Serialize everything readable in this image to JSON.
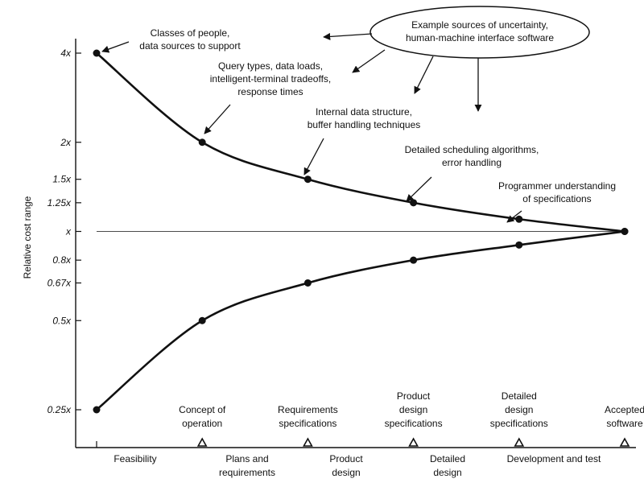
{
  "chart_data": {
    "type": "line",
    "ylabel": "Relative cost range",
    "y_scale": "log",
    "ylim": [
      0.25,
      4
    ],
    "y_ticks": [
      {
        "value": 4,
        "label": "4x"
      },
      {
        "value": 2,
        "label": "2x"
      },
      {
        "value": 1.5,
        "label": "1.5x"
      },
      {
        "value": 1.25,
        "label": "1.25x"
      },
      {
        "value": 1,
        "label": "x"
      },
      {
        "value": 0.8,
        "label": "0.8x"
      },
      {
        "value": 0.67,
        "label": "0.67x"
      },
      {
        "value": 0.5,
        "label": "0.5x"
      },
      {
        "value": 0.25,
        "label": "0.25x"
      }
    ],
    "x": [
      0,
      1,
      2,
      3,
      4,
      5
    ],
    "milestones": [
      "",
      "Concept of operation",
      "Requirements specifications",
      "Product design specifications",
      "Detailed design specifications",
      "Accepted software"
    ],
    "phases": [
      "Feasibility",
      "Plans and requirements",
      "Product design",
      "Detailed design",
      "Development and test"
    ],
    "series": [
      {
        "values": [
          4,
          2,
          1.5,
          1.25,
          1.1,
          1
        ]
      },
      {
        "values": [
          0.25,
          0.5,
          0.67,
          0.8,
          0.9,
          1
        ]
      }
    ],
    "callout": "Example sources of uncertainty, human-machine interface software",
    "annotations": [
      "Classes of people, data sources to support",
      "Query types, data loads, intelligent-terminal tradeoffs, response times",
      "Internal data structure, buffer handling techniques",
      "Detailed scheduling algorithms, error handling",
      "Programmer understanding of specifications"
    ]
  }
}
